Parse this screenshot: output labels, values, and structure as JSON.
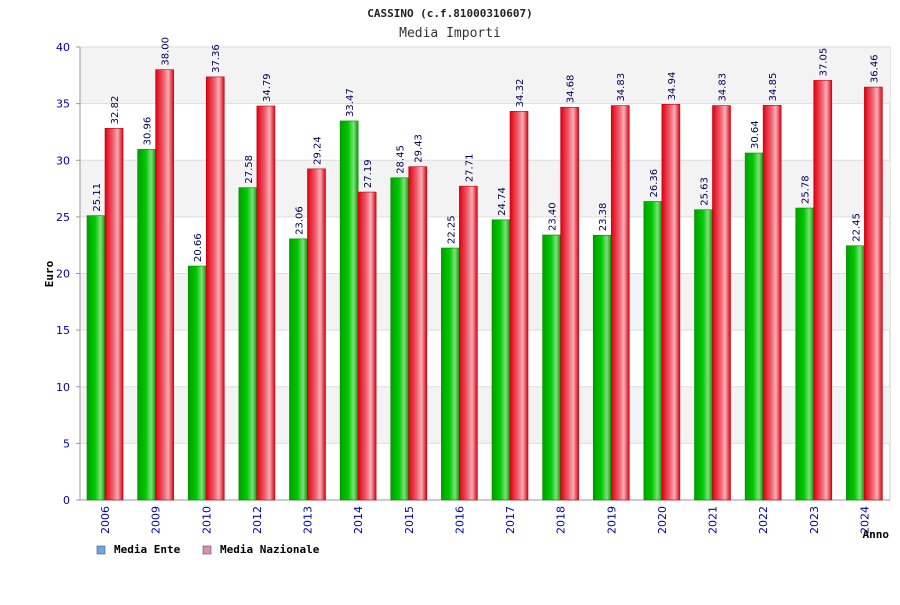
{
  "chart_data": {
    "type": "bar",
    "title": "CASSINO (c.f.81000310607)",
    "subtitle": "Media Importi",
    "xlabel": "Anno",
    "ylabel": "Euro",
    "ylim": [
      0,
      40
    ],
    "yticks": [
      "0",
      "5",
      "10",
      "15",
      "20",
      "25",
      "30",
      "35",
      "40"
    ],
    "grid": true,
    "legend_position": "bottom-left",
    "categories": [
      "2006",
      "2009",
      "2010",
      "2012",
      "2013",
      "2014",
      "2015",
      "2016",
      "2017",
      "2018",
      "2019",
      "2020",
      "2021",
      "2022",
      "2023",
      "2024"
    ],
    "series": [
      {
        "name": "Media Ente",
        "color": "#00b000",
        "values": [
          25.11,
          30.96,
          20.66,
          27.58,
          23.06,
          33.47,
          28.45,
          22.25,
          24.74,
          23.4,
          23.38,
          26.36,
          25.63,
          30.64,
          25.78,
          22.45
        ],
        "labels": [
          "25.11",
          "30.96",
          "20.66",
          "27.58",
          "23.06",
          "33.47",
          "28.45",
          "22.25",
          "24.74",
          "23.40",
          "23.38",
          "26.36",
          "25.63",
          "30.64",
          "25.78",
          "22.45"
        ]
      },
      {
        "name": "Media Nazionale",
        "color": "#e8202a",
        "values": [
          32.82,
          38.0,
          37.36,
          34.79,
          29.24,
          27.19,
          29.43,
          27.71,
          34.32,
          34.68,
          34.83,
          34.94,
          34.83,
          34.85,
          37.05,
          36.46
        ],
        "labels": [
          "32.82",
          "38.00",
          "37.36",
          "34.79",
          "29.24",
          "27.19",
          "29.43",
          "27.71",
          "34.32",
          "34.68",
          "34.83",
          "34.94",
          "34.83",
          "34.85",
          "37.05",
          "36.46"
        ]
      }
    ],
    "legend": [
      {
        "name": "Media Ente",
        "swatch": "#6aa6e8"
      },
      {
        "name": "Media Nazionale",
        "swatch": "#e08ab4"
      }
    ]
  }
}
